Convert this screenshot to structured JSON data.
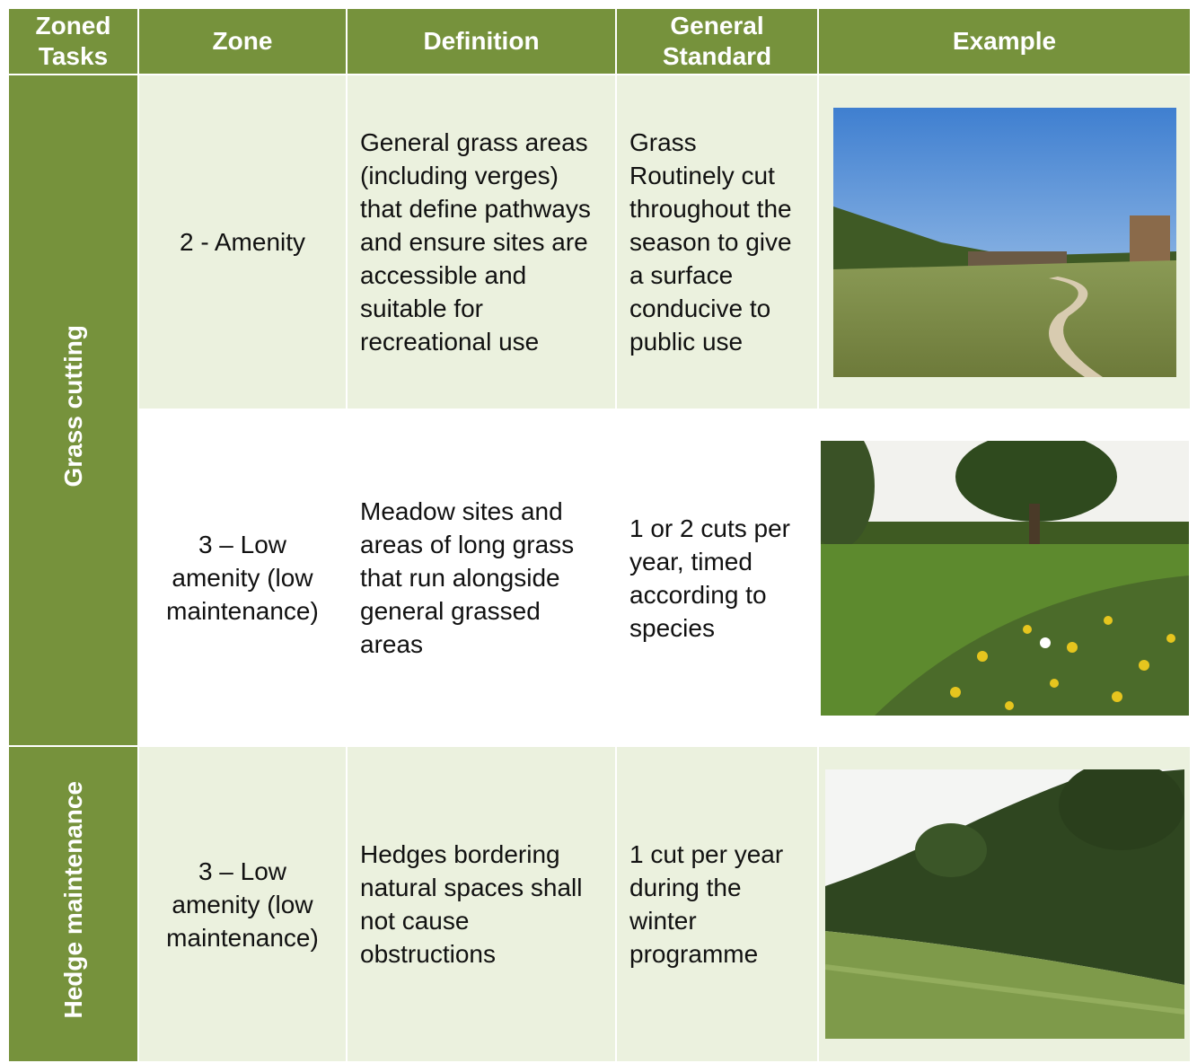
{
  "table": {
    "header": [
      "Zoned Tasks",
      "Zone",
      "Definition",
      "General Standard",
      "Example"
    ],
    "tasks": [
      "Grass cutting",
      "Hedge maintenance"
    ],
    "rows": [
      {
        "zone": "2 - Amenity",
        "definition": "General grass areas (including verges) that define pathways and ensure sites are accessible and suitable for recreational use",
        "standard": "Grass\nRoutinely cut throughout the season to give a surface conducive to public use"
      },
      {
        "zone": "3 – Low amenity (low maintenance)",
        "definition": "Meadow sites and areas of long grass that run alongside general grassed areas",
        "standard": "1 or 2 cuts per year, timed according to species"
      },
      {
        "zone": "3 – Low amenity (low maintenance)",
        "definition": "Hedges bordering natural spaces shall not cause obstructions",
        "standard": "1 cut per year during the winter programme"
      }
    ]
  }
}
